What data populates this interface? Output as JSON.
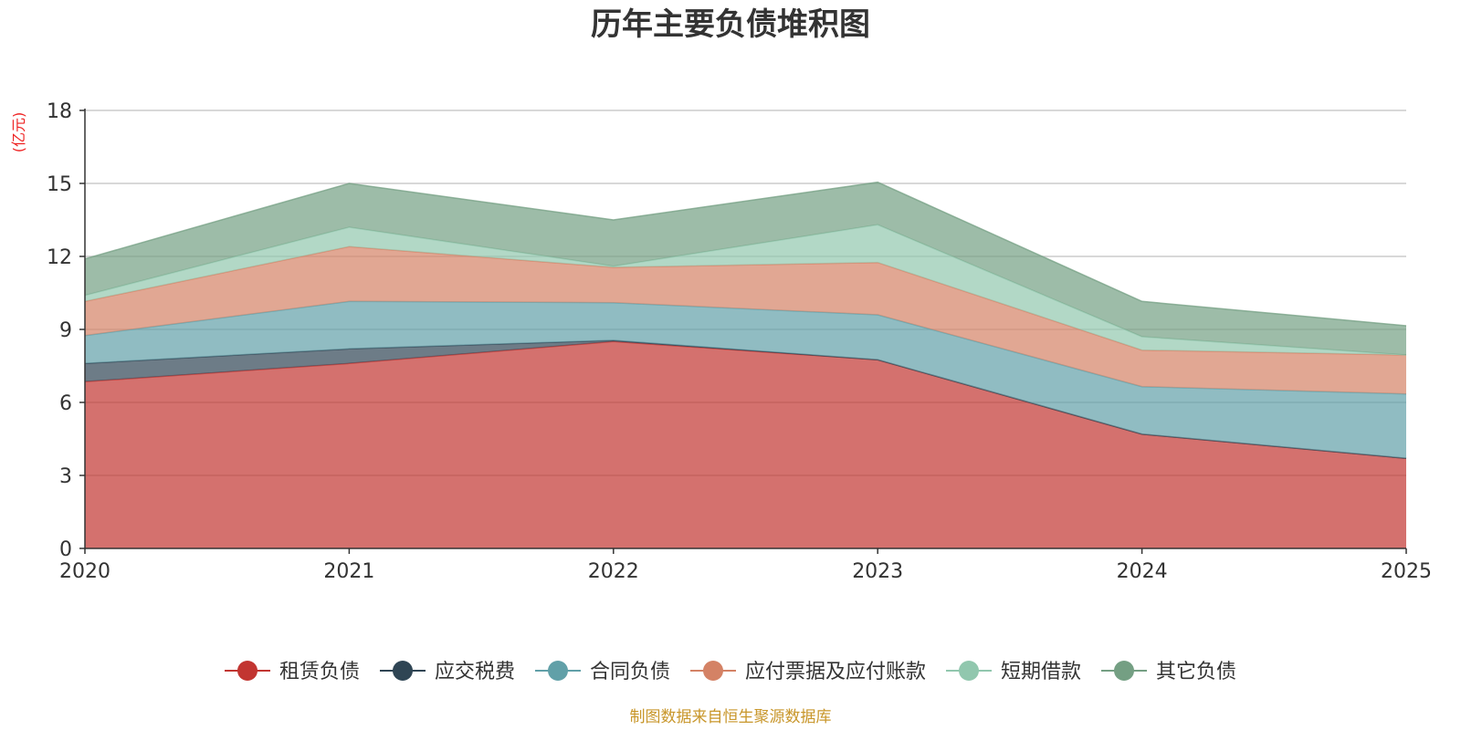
{
  "chart_data": {
    "type": "area",
    "stacked": true,
    "title": "历年主要负债堆积图",
    "unit_label": "(亿元)",
    "source_note": "制图数据来自恒生聚源数据库",
    "x": [
      "2020",
      "2021",
      "2022",
      "2023",
      "2024",
      "2025"
    ],
    "ylim": [
      0,
      18
    ],
    "yticks": [
      0,
      3,
      6,
      9,
      12,
      15,
      18
    ],
    "grid": true,
    "legend_position": "bottom",
    "series": [
      {
        "name": "租赁负债",
        "color": "#c23531",
        "values": [
          6.85,
          7.6,
          8.5,
          7.75,
          4.7,
          3.7
        ]
      },
      {
        "name": "应交税费",
        "color": "#2f4554",
        "values": [
          0.75,
          0.6,
          0.05,
          0.0,
          0.0,
          0.0
        ]
      },
      {
        "name": "合同负债",
        "color": "#61a0a8",
        "values": [
          1.15,
          1.95,
          1.55,
          1.85,
          1.95,
          2.65
        ]
      },
      {
        "name": "应付票据及应付账款",
        "color": "#d48265",
        "values": [
          1.4,
          2.25,
          1.45,
          2.15,
          1.5,
          1.6
        ]
      },
      {
        "name": "短期借款",
        "color": "#91c7ae",
        "values": [
          0.25,
          0.8,
          0.05,
          1.55,
          0.55,
          0.0
        ]
      },
      {
        "name": "其它负债",
        "color": "#749f83",
        "values": [
          1.5,
          1.8,
          1.9,
          1.75,
          1.45,
          1.2
        ]
      }
    ]
  }
}
